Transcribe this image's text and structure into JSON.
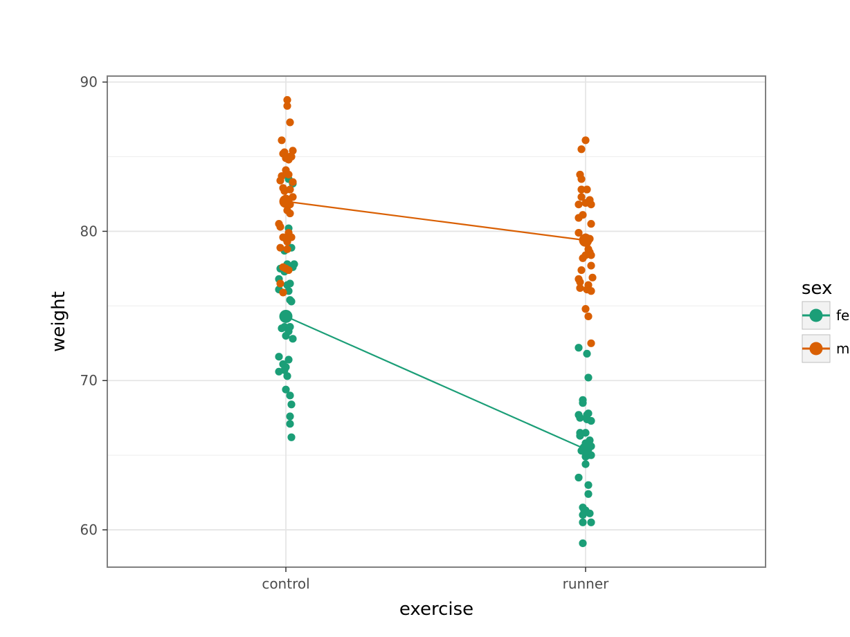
{
  "chart_data": {
    "type": "scatter",
    "title": "",
    "xlabel": "exercise",
    "ylabel": "weight",
    "categories": [
      "control",
      "runner"
    ],
    "ylim": [
      57.5,
      90.4
    ],
    "yticks": [
      60,
      70,
      80,
      90
    ],
    "grid": true,
    "legend": {
      "title": "sex",
      "placement": "right"
    },
    "series": [
      {
        "name": "female",
        "color": "#1b9e77",
        "means": [
          74.3,
          65.4
        ],
        "points": [
          [
            0.02,
            80.2
          ],
          [
            -0.01,
            78.7
          ],
          [
            0.04,
            78.9
          ],
          [
            0.06,
            77.8
          ],
          [
            0.05,
            77.6
          ],
          [
            -0.04,
            77.5
          ],
          [
            -0.01,
            77.3
          ],
          [
            0.01,
            77.8
          ],
          [
            -0.05,
            76.8
          ],
          [
            0.03,
            76.5
          ],
          [
            0.01,
            76.4
          ],
          [
            0.02,
            76.0
          ],
          [
            -0.05,
            76.1
          ],
          [
            0.03,
            75.4
          ],
          [
            0.04,
            75.3
          ],
          [
            -0.01,
            73.6
          ],
          [
            -0.03,
            73.5
          ],
          [
            0.03,
            73.6
          ],
          [
            0.02,
            73.3
          ],
          [
            0.0,
            73.0
          ],
          [
            0.05,
            72.8
          ],
          [
            -0.05,
            71.6
          ],
          [
            -0.02,
            71.1
          ],
          [
            0.02,
            71.4
          ],
          [
            0.0,
            70.9
          ],
          [
            -0.01,
            70.7
          ],
          [
            -0.05,
            70.6
          ],
          [
            0.01,
            70.3
          ],
          [
            0.0,
            69.4
          ],
          [
            0.03,
            69.0
          ],
          [
            0.04,
            68.4
          ],
          [
            0.03,
            67.6
          ],
          [
            0.03,
            67.1
          ],
          [
            0.04,
            66.2
          ],
          [
            0.02,
            83.5
          ],
          [
            0.05,
            83.2
          ],
          [
            -0.05,
            72.2
          ],
          [
            0.01,
            71.8
          ],
          [
            0.02,
            70.2
          ],
          [
            -0.02,
            68.7
          ],
          [
            -0.02,
            68.5
          ],
          [
            -0.05,
            67.7
          ],
          [
            0.02,
            67.8
          ],
          [
            -0.04,
            67.5
          ],
          [
            0.01,
            67.7
          ],
          [
            0.04,
            67.3
          ],
          [
            0.01,
            67.4
          ],
          [
            -0.04,
            66.5
          ],
          [
            0.0,
            66.5
          ],
          [
            -0.04,
            66.3
          ],
          [
            0.03,
            66.0
          ],
          [
            0.0,
            65.8
          ],
          [
            0.04,
            65.6
          ],
          [
            -0.03,
            65.3
          ],
          [
            0.02,
            65.0
          ],
          [
            0.04,
            65.0
          ],
          [
            0.0,
            64.9
          ],
          [
            0.0,
            64.4
          ],
          [
            -0.05,
            63.5
          ],
          [
            0.02,
            63.0
          ],
          [
            0.02,
            62.4
          ],
          [
            -0.02,
            61.5
          ],
          [
            0.0,
            61.3
          ],
          [
            -0.01,
            61.3
          ],
          [
            -0.02,
            61.0
          ],
          [
            0.03,
            61.1
          ],
          [
            -0.02,
            60.5
          ],
          [
            0.04,
            60.5
          ],
          [
            -0.02,
            59.1
          ]
        ]
      },
      {
        "name": "male",
        "color": "#d95f02",
        "means": [
          82.0,
          79.4
        ],
        "points": [
          [
            0.01,
            88.8
          ],
          [
            0.01,
            88.4
          ],
          [
            0.03,
            87.3
          ],
          [
            -0.03,
            86.1
          ],
          [
            0.05,
            85.4
          ],
          [
            -0.01,
            85.3
          ],
          [
            -0.02,
            85.2
          ],
          [
            0.0,
            84.9
          ],
          [
            0.02,
            84.8
          ],
          [
            0.03,
            85.0
          ],
          [
            0.04,
            85.0
          ],
          [
            0.0,
            84.1
          ],
          [
            -0.03,
            83.7
          ],
          [
            0.02,
            83.8
          ],
          [
            -0.04,
            83.4
          ],
          [
            0.05,
            83.3
          ],
          [
            -0.02,
            82.9
          ],
          [
            -0.01,
            82.7
          ],
          [
            0.03,
            82.8
          ],
          [
            0.05,
            82.3
          ],
          [
            0.0,
            82.2
          ],
          [
            0.02,
            82.0
          ],
          [
            0.03,
            81.8
          ],
          [
            0.01,
            81.4
          ],
          [
            0.03,
            81.2
          ],
          [
            -0.05,
            80.5
          ],
          [
            -0.04,
            80.3
          ],
          [
            0.02,
            79.9
          ],
          [
            -0.02,
            79.6
          ],
          [
            0.0,
            79.5
          ],
          [
            0.04,
            79.6
          ],
          [
            0.01,
            79.3
          ],
          [
            -0.04,
            78.9
          ],
          [
            0.01,
            78.8
          ],
          [
            -0.02,
            77.6
          ],
          [
            0.0,
            77.5
          ],
          [
            0.02,
            77.4
          ],
          [
            -0.04,
            76.5
          ],
          [
            -0.02,
            75.9
          ],
          [
            0.0,
            86.1
          ],
          [
            -0.03,
            85.5
          ],
          [
            -0.04,
            83.8
          ],
          [
            -0.03,
            83.5
          ],
          [
            -0.03,
            82.8
          ],
          [
            0.01,
            82.8
          ],
          [
            -0.03,
            82.3
          ],
          [
            0.03,
            82.1
          ],
          [
            0.0,
            81.9
          ],
          [
            -0.05,
            81.8
          ],
          [
            0.04,
            81.8
          ],
          [
            -0.02,
            81.1
          ],
          [
            -0.05,
            80.9
          ],
          [
            0.04,
            80.5
          ],
          [
            -0.05,
            79.9
          ],
          [
            0.0,
            79.6
          ],
          [
            0.03,
            79.5
          ],
          [
            0.01,
            79.2
          ],
          [
            0.02,
            78.8
          ],
          [
            0.03,
            78.6
          ],
          [
            0.04,
            78.4
          ],
          [
            -0.02,
            78.2
          ],
          [
            0.0,
            78.4
          ],
          [
            0.04,
            77.7
          ],
          [
            -0.03,
            77.4
          ],
          [
            -0.05,
            76.8
          ],
          [
            0.05,
            76.9
          ],
          [
            -0.04,
            76.6
          ],
          [
            0.02,
            76.4
          ],
          [
            -0.04,
            76.2
          ],
          [
            0.01,
            76.1
          ],
          [
            0.04,
            76.0
          ],
          [
            0.0,
            74.8
          ],
          [
            0.02,
            74.3
          ],
          [
            0.04,
            72.5
          ]
        ]
      }
    ]
  }
}
